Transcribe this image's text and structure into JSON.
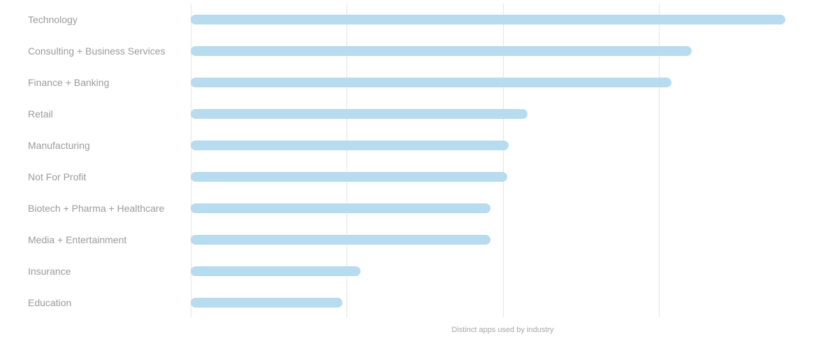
{
  "colors": {
    "background": "#ffffff",
    "bar_fill": "#b7dbef",
    "label_text": "#9b9b9b",
    "caption_text": "#a8a8a8",
    "gridline": "#e5e5e5"
  },
  "chart_data": {
    "type": "bar",
    "orientation": "horizontal",
    "title": "",
    "xlabel": "Distinct apps used by industry",
    "ylabel": "",
    "categories": [
      "Technology",
      "Consulting + Business Services",
      "Finance + Banking",
      "Retail",
      "Manufacturing",
      "Not For Profit",
      "Biotech + Pharma + Healthcare",
      "Media + Entertainment",
      "Insurance",
      "Education"
    ],
    "values": [
      3.81,
      3.21,
      3.08,
      2.16,
      2.04,
      2.03,
      1.92,
      1.92,
      1.09,
      0.97
    ],
    "values_unit": "gridline units (x-axis gridlines are unlabeled; 1 unit = one gridline spacing)",
    "xlim": [
      0,
      4
    ],
    "xticks": [
      0,
      1,
      2,
      3
    ],
    "grid": "vertical gridlines only, no tick labels",
    "legend": "none"
  }
}
